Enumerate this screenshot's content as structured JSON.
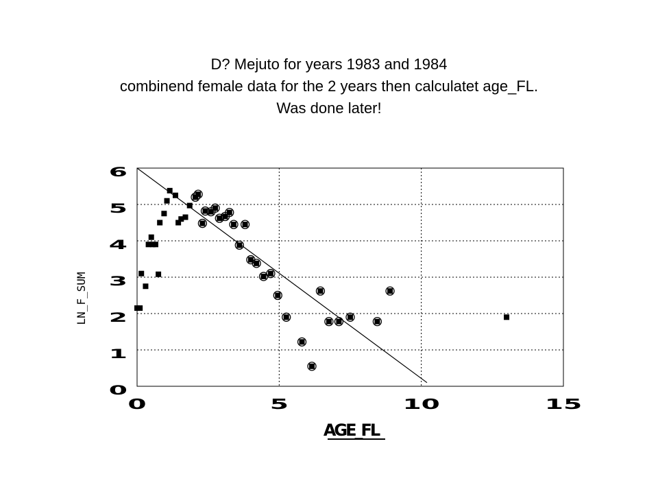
{
  "title_lines": [
    "D? Mejuto for years 1983 and 1984",
    "combinend female data for the 2 years then calculatet age_FL.",
    "Was done later!"
  ],
  "chart_data": {
    "type": "scatter",
    "xlabel": "AGE_FL",
    "ylabel": "LN_F_SUM",
    "xlim": [
      0,
      15
    ],
    "ylim": [
      0,
      6
    ],
    "xticks": [
      "0",
      "5",
      "10",
      "15"
    ],
    "yticks": [
      "0",
      "1",
      "2",
      "3",
      "4",
      "5",
      "6"
    ],
    "grid": true,
    "grid_style": "dotted",
    "fit_line": {
      "x": [
        0,
        10.2
      ],
      "y": [
        6,
        0.1
      ]
    },
    "all_points": [
      [
        0.0,
        2.15
      ],
      [
        0.1,
        2.15
      ],
      [
        0.15,
        3.1
      ],
      [
        0.3,
        2.75
      ],
      [
        0.4,
        3.9
      ],
      [
        0.5,
        4.1
      ],
      [
        0.55,
        3.9
      ],
      [
        0.65,
        3.9
      ],
      [
        0.75,
        3.08
      ],
      [
        0.8,
        4.5
      ],
      [
        0.95,
        4.75
      ],
      [
        1.05,
        5.1
      ],
      [
        1.15,
        5.38
      ],
      [
        1.35,
        5.25
      ],
      [
        1.45,
        4.5
      ],
      [
        1.55,
        4.6
      ],
      [
        1.7,
        4.65
      ],
      [
        1.85,
        4.97
      ],
      [
        2.05,
        5.2
      ],
      [
        2.15,
        5.28
      ],
      [
        2.3,
        4.48
      ],
      [
        2.4,
        4.82
      ],
      [
        2.6,
        4.8
      ],
      [
        2.75,
        4.9
      ],
      [
        2.9,
        4.62
      ],
      [
        3.1,
        4.67
      ],
      [
        3.25,
        4.78
      ],
      [
        3.4,
        4.45
      ],
      [
        3.6,
        3.88
      ],
      [
        3.8,
        4.45
      ],
      [
        4.0,
        3.48
      ],
      [
        4.2,
        3.38
      ],
      [
        4.45,
        3.02
      ],
      [
        4.7,
        3.1
      ],
      [
        4.95,
        2.5
      ],
      [
        5.25,
        1.9
      ],
      [
        5.8,
        1.22
      ],
      [
        6.15,
        0.55
      ],
      [
        6.45,
        2.62
      ],
      [
        6.75,
        1.78
      ],
      [
        7.1,
        1.78
      ],
      [
        7.5,
        1.9
      ],
      [
        8.45,
        1.78
      ],
      [
        8.9,
        2.62
      ],
      [
        13.0,
        1.9
      ]
    ],
    "circled_points": [
      [
        2.05,
        5.2
      ],
      [
        2.15,
        5.28
      ],
      [
        2.3,
        4.48
      ],
      [
        2.4,
        4.82
      ],
      [
        2.6,
        4.8
      ],
      [
        2.75,
        4.9
      ],
      [
        2.9,
        4.62
      ],
      [
        3.1,
        4.67
      ],
      [
        3.25,
        4.78
      ],
      [
        3.4,
        4.45
      ],
      [
        3.6,
        3.88
      ],
      [
        3.8,
        4.45
      ],
      [
        4.0,
        3.48
      ],
      [
        4.2,
        3.38
      ],
      [
        4.45,
        3.02
      ],
      [
        4.7,
        3.1
      ],
      [
        4.95,
        2.5
      ],
      [
        5.25,
        1.9
      ],
      [
        5.8,
        1.22
      ],
      [
        6.15,
        0.55
      ],
      [
        6.45,
        2.62
      ],
      [
        6.75,
        1.78
      ],
      [
        7.1,
        1.78
      ],
      [
        7.5,
        1.9
      ],
      [
        8.45,
        1.78
      ],
      [
        8.9,
        2.62
      ]
    ]
  }
}
